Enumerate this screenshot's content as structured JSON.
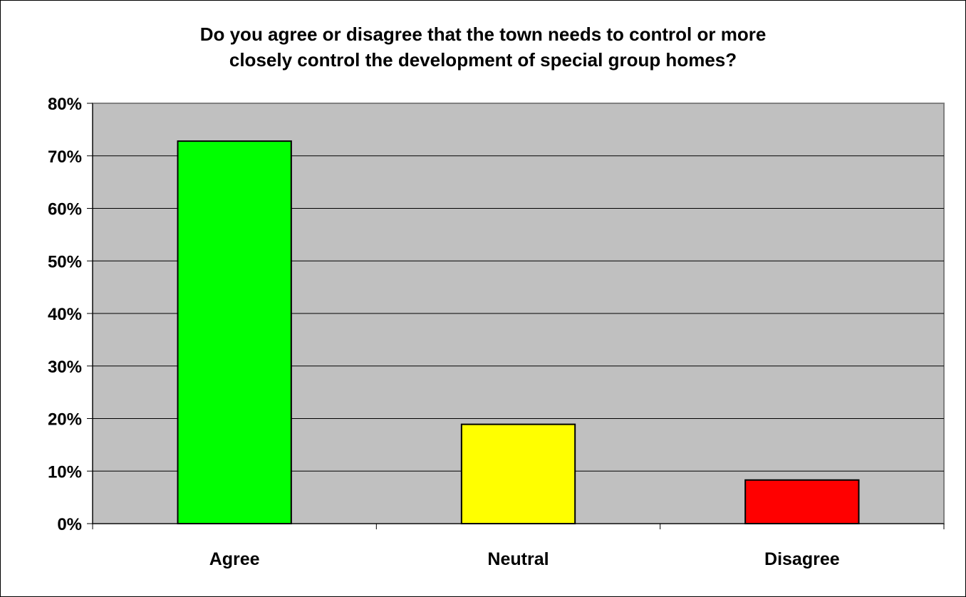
{
  "chart_data": {
    "type": "bar",
    "title_lines": [
      "Do you agree or disagree that the town needs to control or more",
      "closely control the development of special group homes?"
    ],
    "categories": [
      "Agree",
      "Neutral",
      "Disagree"
    ],
    "values": [
      72.8,
      18.9,
      8.3
    ],
    "colors": [
      "#00ff00",
      "#ffff00",
      "#ff0000"
    ],
    "y_ticks": [
      "0%",
      "10%",
      "20%",
      "30%",
      "40%",
      "50%",
      "60%",
      "70%",
      "80%"
    ],
    "ylim": [
      0,
      80
    ],
    "y_unit": "%",
    "grid": true,
    "legend": "none",
    "plot_background": "#c0c0c0",
    "xlabel": "",
    "ylabel": ""
  }
}
